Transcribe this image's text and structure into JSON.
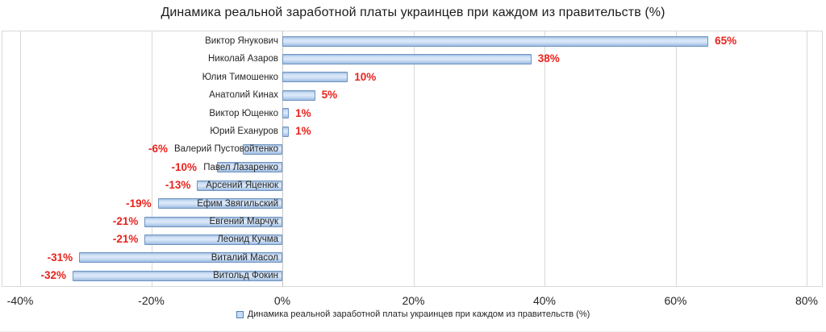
{
  "title": "Динамика реальной заработной платы украинцев при каждом из правительств (%)",
  "legend": {
    "label": "Динамика реальной заработной платы украинцев при каждом из правительств (%)"
  },
  "chart_data": {
    "type": "bar",
    "orientation": "horizontal",
    "title": "Динамика реальной заработной платы украинцев при каждом из правительств (%)",
    "categories": [
      "Виктор Янукович",
      "Николай Азаров",
      "Юлия Тимошенко",
      "Анатолий Кинах",
      "Виктор Ющенко",
      "Юрий Ехануров",
      "Валерий Пустовойтенко",
      "Павел Лазаренко",
      "Арсений Яценюк",
      "Ефим Звягильский",
      "Евгений Марчук",
      "Леонид Кучма",
      "Виталий Масол",
      "Витольд Фокин"
    ],
    "values": [
      65,
      38,
      10,
      5,
      1,
      1,
      -6,
      -10,
      -13,
      -19,
      -21,
      -21,
      -31,
      -32
    ],
    "value_labels": [
      "65%",
      "38%",
      "10%",
      "5%",
      "1%",
      "1%",
      "-6%",
      "-10%",
      "-13%",
      "-19%",
      "-21%",
      "-21%",
      "-31%",
      "-32%"
    ],
    "xlabel": "",
    "ylabel": "",
    "xlim": [
      -40,
      80
    ],
    "x_ticks": [
      {
        "value": -40,
        "label": "-40%"
      },
      {
        "value": -20,
        "label": "-20%"
      },
      {
        "value": 0,
        "label": "0%"
      },
      {
        "value": 20,
        "label": "20%"
      },
      {
        "value": 40,
        "label": "40%"
      },
      {
        "value": 60,
        "label": "60%"
      },
      {
        "value": 80,
        "label": "80%"
      }
    ],
    "grid": true,
    "legend_position": "bottom",
    "colors": {
      "bar_top": "#9fbde2",
      "bar_light": "#dce9fa",
      "bar_bottom": "#9cbade",
      "bar_border": "#6e94c0",
      "value_label": "#e8231d",
      "axis_text": "#262626",
      "gridline": "#d9d9d9",
      "plot_border": "#d9d9d9",
      "legend_fill": "#c9dcf3",
      "legend_border": "#4f81bd"
    }
  }
}
